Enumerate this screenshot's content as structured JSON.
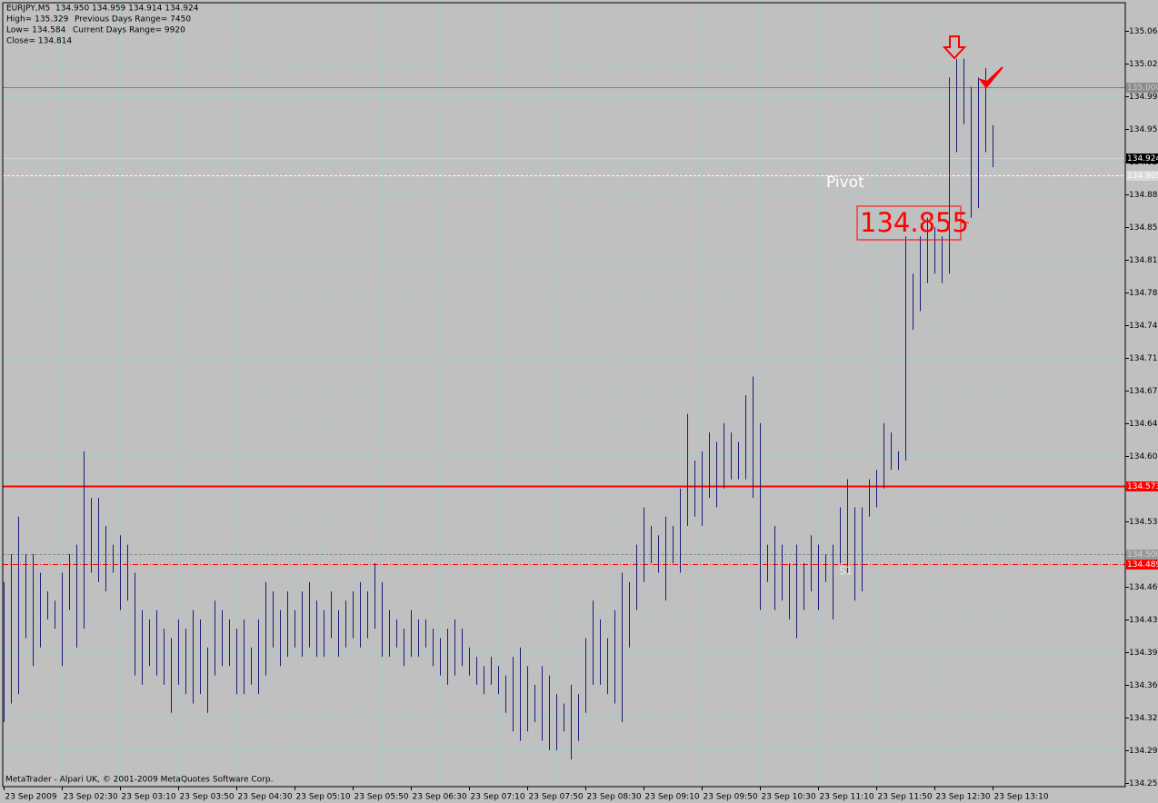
{
  "chart_data": {
    "type": "range_bar",
    "header": {
      "quote": "EURJPY,M5  134.950 134.959 134.914 134.924",
      "high": "High= 135.329",
      "prev_range": "Previous Days Range= 7450",
      "low": "Low= 134.584",
      "cur_range": "Current Days Range= 9920",
      "close": "Close= 134.814"
    },
    "footer": "MetaTrader - Alpari UK, © 2001-2009 MetaQuotes Software Corp.",
    "annotations": {
      "pivot": "Pivot",
      "s1": "S1",
      "box": "134.855"
    },
    "color": "#1c1c78",
    "background": "#c0c0c0",
    "grid": true,
    "grid_color": "#9ccfcf",
    "ylim": [
      134.251,
      135.09
    ],
    "yticks": [
      {
        "value": 135.06,
        "label": "135.060"
      },
      135.025,
      {
        "value": 134.99,
        "label": "134.990"
      },
      134.955,
      {
        "value": 134.92,
        "label": "134.920"
      },
      134.885,
      {
        "value": 134.85,
        "label": "134.850"
      },
      134.815,
      {
        "value": 134.78,
        "label": "134.780"
      },
      134.745,
      {
        "value": 134.71,
        "label": "134.710"
      },
      134.675,
      {
        "value": 134.64,
        "label": "134.640"
      },
      134.605,
      {
        "value": 134.57,
        "label": "134.570"
      },
      134.535,
      {
        "value": 134.5,
        "label": "134.500"
      },
      134.465,
      {
        "value": 134.43,
        "label": "134.430"
      },
      134.395,
      {
        "value": 134.36,
        "label": "134.360"
      },
      134.325,
      {
        "value": 134.29,
        "label": "134.290"
      },
      134.255
    ],
    "levels": [
      {
        "value": 135.0,
        "label": "135.000",
        "color": "#808080",
        "style": "solid",
        "label_bg": "#8c8c8c",
        "label_color": "#c8c8c8"
      },
      {
        "value": 134.924,
        "label": "134.924",
        "color": "#d0d0d0",
        "style": "solid",
        "label_bg": "#000000",
        "label_color": "#ffffff"
      },
      {
        "value": 134.905,
        "label": "134.905",
        "color": "#ffffff",
        "style": "dashed",
        "label_bg": "#d8d8d8",
        "label_color": "#ffffff"
      },
      {
        "value": 134.573,
        "label": "134.573",
        "color": "#ff0000",
        "style": "solid",
        "label_bg": "#ff0000",
        "label_color": "#ffffff"
      },
      {
        "value": 134.5,
        "label": "134.500",
        "color": "#8c8c8c",
        "style": "dashed",
        "label_bg": "#9a9a9a",
        "label_color": "#d0d0d0"
      },
      {
        "value": 134.489,
        "label": "134.489",
        "color": "#ff0000",
        "style": "dashdot",
        "label_bg": "#ff0000",
        "label_color": "#ffffff"
      }
    ],
    "categories": [
      "23 Sep 2009",
      null,
      null,
      null,
      null,
      null,
      null,
      null,
      "23 Sep 02:30",
      null,
      null,
      null,
      null,
      null,
      null,
      null,
      "23 Sep 03:10",
      null,
      null,
      null,
      null,
      null,
      null,
      null,
      "23 Sep 03:50",
      null,
      null,
      null,
      null,
      null,
      null,
      null,
      "23 Sep 04:30",
      null,
      null,
      null,
      null,
      null,
      null,
      null,
      "23 Sep 05:10",
      null,
      null,
      null,
      null,
      null,
      null,
      null,
      "23 Sep 05:50",
      null,
      null,
      null,
      null,
      null,
      null,
      null,
      "23 Sep 06:30",
      null,
      null,
      null,
      null,
      null,
      null,
      null,
      "23 Sep 07:10",
      null,
      null,
      null,
      null,
      null,
      null,
      null,
      "23 Sep 07:50",
      null,
      null,
      null,
      null,
      null,
      null,
      null,
      "23 Sep 08:30",
      null,
      null,
      null,
      null,
      null,
      null,
      null,
      "23 Sep 09:10",
      null,
      null,
      null,
      null,
      null,
      null,
      null,
      "23 Sep 09:50",
      null,
      null,
      null,
      null,
      null,
      null,
      null,
      "23 Sep 10:30",
      null,
      null,
      null,
      null,
      null,
      null,
      null,
      "23 Sep 11:10",
      null,
      null,
      null,
      null,
      null,
      null,
      null,
      "23 Sep 11:50",
      null,
      null,
      null,
      null,
      null,
      null,
      null,
      "23 Sep 12:30",
      null,
      null,
      null,
      null,
      null,
      null,
      null,
      "23 Sep 13:10"
    ],
    "high": [
      134.47,
      134.5,
      134.54,
      134.5,
      134.5,
      134.48,
      134.46,
      134.45,
      134.48,
      134.5,
      134.51,
      134.61,
      134.56,
      134.56,
      134.53,
      134.51,
      134.52,
      134.51,
      134.48,
      134.44,
      134.43,
      134.44,
      134.42,
      134.41,
      134.43,
      134.42,
      134.44,
      134.43,
      134.4,
      134.45,
      134.44,
      134.43,
      134.42,
      134.43,
      134.4,
      134.43,
      134.47,
      134.46,
      134.44,
      134.46,
      134.44,
      134.46,
      134.47,
      134.45,
      134.44,
      134.46,
      134.44,
      134.45,
      134.46,
      134.47,
      134.46,
      134.49,
      134.47,
      134.44,
      134.43,
      134.42,
      134.44,
      134.43,
      134.43,
      134.42,
      134.41,
      134.42,
      134.43,
      134.42,
      134.4,
      134.39,
      134.38,
      134.39,
      134.38,
      134.37,
      134.39,
      134.4,
      134.38,
      134.36,
      134.38,
      134.37,
      134.35,
      134.34,
      134.36,
      134.35,
      134.41,
      134.45,
      134.43,
      134.41,
      134.44,
      134.48,
      134.47,
      134.51,
      134.55,
      134.53,
      134.52,
      134.54,
      134.53,
      134.57,
      134.65,
      134.6,
      134.61,
      134.63,
      134.62,
      134.64,
      134.63,
      134.62,
      134.67,
      134.69,
      134.64,
      134.51,
      134.53,
      134.51,
      134.49,
      134.51,
      134.49,
      134.52,
      134.51,
      134.5,
      134.51,
      134.55,
      134.58,
      134.55,
      134.55,
      134.58,
      134.59,
      134.64,
      134.63,
      134.61,
      134.84,
      134.8,
      134.84,
      134.86,
      134.85,
      134.84,
      135.01,
      135.03,
      135.03,
      135.0,
      135.01,
      135.02,
      134.959
    ],
    "low": [
      134.32,
      134.34,
      134.35,
      134.41,
      134.38,
      134.4,
      134.43,
      134.42,
      134.38,
      134.44,
      134.4,
      134.42,
      134.48,
      134.47,
      134.46,
      134.48,
      134.44,
      134.45,
      134.37,
      134.36,
      134.38,
      134.37,
      134.36,
      134.33,
      134.36,
      134.35,
      134.34,
      134.35,
      134.33,
      134.37,
      134.38,
      134.38,
      134.35,
      134.35,
      134.36,
      134.35,
      134.37,
      134.4,
      134.38,
      134.39,
      134.4,
      134.39,
      134.4,
      134.39,
      134.39,
      134.41,
      134.39,
      134.4,
      134.41,
      134.4,
      134.41,
      134.42,
      134.39,
      134.39,
      134.4,
      134.38,
      134.39,
      134.39,
      134.4,
      134.38,
      134.37,
      134.36,
      134.37,
      134.38,
      134.37,
      134.36,
      134.35,
      134.36,
      134.35,
      134.33,
      134.31,
      134.3,
      134.31,
      134.32,
      134.3,
      134.29,
      134.29,
      134.31,
      134.28,
      134.3,
      134.33,
      134.36,
      134.36,
      134.35,
      134.34,
      134.32,
      134.4,
      134.44,
      134.47,
      134.49,
      134.48,
      134.45,
      134.49,
      134.48,
      134.53,
      134.54,
      134.53,
      134.56,
      134.55,
      134.57,
      134.58,
      134.58,
      134.58,
      134.56,
      134.44,
      134.47,
      134.44,
      134.45,
      134.43,
      134.41,
      134.44,
      134.46,
      134.44,
      134.47,
      134.43,
      134.49,
      134.48,
      134.45,
      134.46,
      134.54,
      134.55,
      134.57,
      134.59,
      134.59,
      134.6,
      134.74,
      134.76,
      134.79,
      134.8,
      134.79,
      134.8,
      134.93,
      134.96,
      134.86,
      134.87,
      134.93,
      134.914
    ]
  }
}
